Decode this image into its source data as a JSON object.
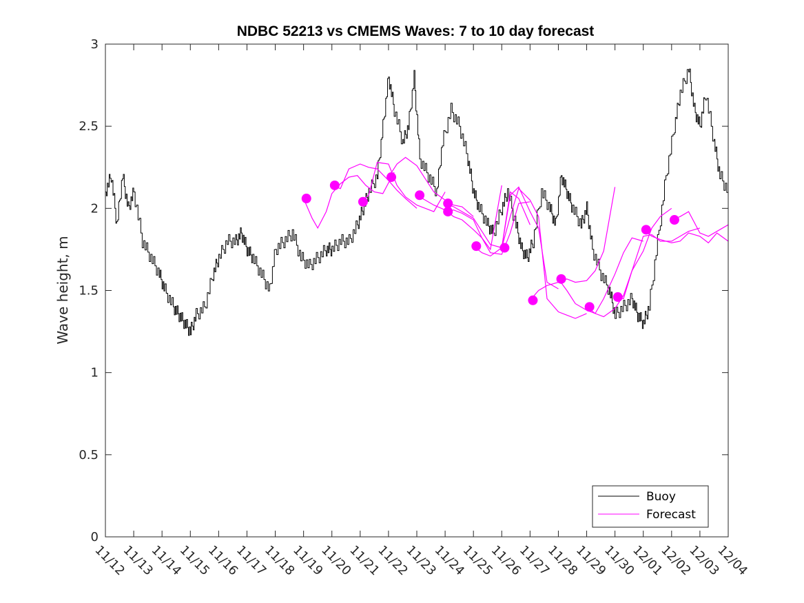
{
  "chart_data": {
    "type": "line",
    "title": "NDBC 52213 vs CMEMS Waves: 7 to 10 day forecast",
    "xlabel": "",
    "ylabel": "Wave height, m",
    "x_unit": "days since 11/12",
    "xlim": [
      0,
      22
    ],
    "ylim": [
      0,
      3
    ],
    "y_ticks": [
      0,
      0.5,
      1,
      1.5,
      2,
      2.5,
      3
    ],
    "y_tick_labels": [
      "0",
      "0.5",
      "1",
      "1.5",
      "2",
      "2.5",
      "3"
    ],
    "x_ticks": [
      0,
      1,
      2,
      3,
      4,
      5,
      6,
      7,
      8,
      9,
      10,
      11,
      12,
      13,
      14,
      15,
      16,
      17,
      18,
      19,
      20,
      21,
      22
    ],
    "x_tick_labels": [
      "11/12",
      "11/13",
      "11/14",
      "11/15",
      "11/16",
      "11/17",
      "11/18",
      "11/19",
      "11/20",
      "11/21",
      "11/22",
      "11/23",
      "11/24",
      "11/25",
      "11/26",
      "11/27",
      "11/28",
      "11/29",
      "11/30",
      "12/01",
      "12/02",
      "12/03",
      "12/04"
    ],
    "grid": false,
    "legend_position": "bottom-right",
    "series": [
      {
        "name": "Buoy",
        "color": "#000000",
        "x": [
          0,
          0.2,
          0.4,
          0.6,
          0.8,
          1.0,
          1.3,
          1.6,
          1.9,
          2.1,
          2.4,
          2.6,
          2.8,
          3.0,
          3.2,
          3.5,
          3.8,
          4.0,
          4.3,
          4.6,
          4.8,
          5.0,
          5.2,
          5.5,
          5.8,
          6.0,
          6.3,
          6.6,
          6.9,
          7.2,
          7.5,
          7.8,
          8.0,
          8.3,
          8.6,
          8.9,
          9.1,
          9.3,
          9.6,
          9.8,
          10.0,
          10.2,
          10.5,
          10.7,
          10.9,
          11.1,
          11.4,
          11.7,
          11.9,
          12.2,
          12.5,
          12.8,
          13.0,
          13.2,
          13.5,
          13.7,
          14.0,
          14.2,
          14.5,
          14.7,
          14.9,
          15.1,
          15.4,
          15.7,
          15.9,
          16.1,
          16.3,
          16.5,
          16.8,
          17.0,
          17.2,
          17.5,
          17.8,
          18.0,
          18.3,
          18.6,
          18.8,
          19.0,
          19.2,
          19.5,
          19.8,
          20.1,
          20.3,
          20.6,
          20.8,
          21.0,
          21.2,
          21.5,
          21.7,
          22.0
        ],
        "y": [
          2.1,
          2.2,
          1.9,
          2.2,
          2.0,
          2.1,
          1.8,
          1.7,
          1.6,
          1.5,
          1.4,
          1.35,
          1.3,
          1.25,
          1.35,
          1.4,
          1.6,
          1.7,
          1.8,
          1.8,
          1.85,
          1.75,
          1.7,
          1.6,
          1.5,
          1.75,
          1.8,
          1.85,
          1.7,
          1.65,
          1.7,
          1.75,
          1.75,
          1.8,
          1.8,
          1.9,
          2.0,
          2.1,
          2.2,
          2.5,
          2.8,
          2.6,
          2.4,
          2.5,
          2.8,
          2.3,
          2.2,
          2.1,
          2.4,
          2.6,
          2.5,
          2.3,
          2.1,
          2.0,
          1.9,
          1.85,
          2.0,
          2.1,
          1.9,
          1.75,
          1.7,
          1.8,
          2.1,
          2.0,
          1.9,
          2.2,
          2.1,
          2.0,
          1.9,
          2.0,
          1.75,
          1.6,
          1.5,
          1.35,
          1.4,
          1.45,
          1.35,
          1.3,
          1.4,
          1.8,
          2.2,
          2.5,
          2.7,
          2.85,
          2.6,
          2.5,
          2.7,
          2.4,
          2.2,
          2.1
        ]
      },
      {
        "name": "Forecast",
        "color": "#ff00ff",
        "runs": [
          {
            "x": [
              7.0,
              7.3,
              7.5,
              7.8,
              8.0,
              8.3,
              8.6,
              8.9,
              9.2,
              9.5,
              9.8,
              10.2
            ],
            "y": [
              2.06,
              1.94,
              1.88,
              1.98,
              2.09,
              2.15,
              2.19,
              2.2,
              2.14,
              2.1,
              2.09,
              2.22
            ]
          },
          {
            "x": [
              8.0,
              8.3,
              8.6,
              9.0,
              9.3,
              9.6,
              10.0,
              10.3,
              10.6,
              11.0
            ],
            "y": [
              2.14,
              2.12,
              2.24,
              2.27,
              2.25,
              2.24,
              2.17,
              2.11,
              2.06,
              2.0
            ]
          },
          {
            "x": [
              9.0,
              9.3,
              9.6,
              10.0,
              10.3,
              10.6,
              11.0,
              11.3,
              11.6,
              12.0
            ],
            "y": [
              2.04,
              2.08,
              2.28,
              2.27,
              2.14,
              2.07,
              2.02,
              2.0,
              1.98,
              2.1
            ]
          },
          {
            "x": [
              10.0,
              10.3,
              10.6,
              11.0,
              11.3,
              11.6,
              12.0,
              12.3,
              12.6,
              13.0
            ],
            "y": [
              2.19,
              2.27,
              2.31,
              2.26,
              2.18,
              2.1,
              2.05,
              2.02,
              2.01,
              1.95
            ]
          },
          {
            "x": [
              11.0,
              11.3,
              11.6,
              12.0,
              12.3,
              12.6,
              13.0,
              13.3,
              13.6,
              14.0
            ],
            "y": [
              2.08,
              2.05,
              2.02,
              1.99,
              1.95,
              1.93,
              1.87,
              1.82,
              1.75,
              2.14
            ]
          },
          {
            "x": [
              12.0,
              12.3,
              12.6,
              13.0,
              13.3,
              13.6,
              14.0,
              14.3,
              14.6,
              15.0
            ],
            "y": [
              2.03,
              2.01,
              1.98,
              1.94,
              1.86,
              1.78,
              1.76,
              2.1,
              2.06,
              1.9
            ]
          },
          {
            "x": [
              12.0,
              12.3,
              12.6,
              13.0,
              13.3,
              13.6,
              14.0,
              14.3,
              14.6,
              15.0
            ],
            "y": [
              1.98,
              1.99,
              1.97,
              1.93,
              1.82,
              1.73,
              1.72,
              1.85,
              2.03,
              2.04
            ]
          },
          {
            "x": [
              13.0,
              13.3,
              13.6,
              14.0,
              14.3,
              14.6,
              15.0,
              15.3,
              15.6,
              16.0
            ],
            "y": [
              1.77,
              1.73,
              1.71,
              1.76,
              2.08,
              2.13,
              1.98,
              1.88,
              1.55,
              1.51
            ]
          },
          {
            "x": [
              14.0,
              14.3,
              14.6,
              15.0,
              15.3,
              15.6,
              16.0,
              16.3,
              16.6,
              17.0
            ],
            "y": [
              1.76,
              1.95,
              2.12,
              2.05,
              1.95,
              1.45,
              1.37,
              1.35,
              1.33,
              1.36
            ]
          },
          {
            "x": [
              15.0,
              15.3,
              15.6,
              16.0,
              16.3,
              16.6,
              17.0,
              17.3,
              17.6,
              18.0
            ],
            "y": [
              1.44,
              1.5,
              1.53,
              1.55,
              1.57,
              1.55,
              1.56,
              1.62,
              1.74,
              2.13
            ]
          },
          {
            "x": [
              16.0,
              16.3,
              16.6,
              17.0,
              17.3,
              17.6,
              18.0,
              18.3,
              18.6,
              19.0
            ],
            "y": [
              1.57,
              1.5,
              1.42,
              1.38,
              1.36,
              1.45,
              1.6,
              1.73,
              1.82,
              1.8
            ]
          },
          {
            "x": [
              17.0,
              17.3,
              17.6,
              18.0,
              18.3,
              18.6,
              19.0,
              19.3,
              19.6,
              20.0
            ],
            "y": [
              1.4,
              1.36,
              1.34,
              1.39,
              1.47,
              1.62,
              1.74,
              1.88,
              1.95,
              2.0
            ]
          },
          {
            "x": [
              18.0,
              18.3,
              18.6,
              19.0,
              19.3,
              19.6,
              20.0,
              20.3,
              20.6,
              21.0
            ],
            "y": [
              1.46,
              1.45,
              1.62,
              1.83,
              1.84,
              1.8,
              1.8,
              1.83,
              1.86,
              1.88
            ]
          },
          {
            "x": [
              19.0,
              19.3,
              19.6,
              20.0,
              20.3,
              20.6,
              21.0,
              21.3,
              21.6,
              22.0
            ],
            "y": [
              1.87,
              1.83,
              1.81,
              1.79,
              1.8,
              1.85,
              1.83,
              1.79,
              1.85,
              1.8
            ]
          },
          {
            "x": [
              20.0,
              20.3,
              20.6,
              21.0,
              21.3,
              21.6,
              22.0
            ],
            "y": [
              1.93,
              1.95,
              1.98,
              1.85,
              1.83,
              1.86,
              1.9
            ]
          }
        ],
        "markers": {
          "x": [
            7.1,
            8.1,
            9.1,
            10.1,
            11.1,
            12.1,
            12.1,
            13.1,
            14.1,
            15.1,
            16.1,
            17.1,
            18.1,
            19.1,
            20.1
          ],
          "y": [
            2.06,
            2.14,
            2.04,
            2.19,
            2.08,
            2.03,
            1.98,
            1.77,
            1.76,
            1.44,
            1.57,
            1.4,
            1.46,
            1.87,
            1.93
          ]
        }
      }
    ],
    "legend": [
      "Buoy",
      "Forecast"
    ]
  }
}
